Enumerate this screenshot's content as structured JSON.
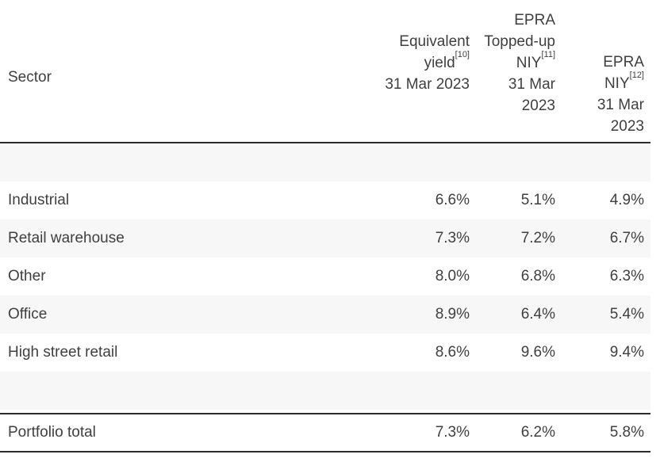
{
  "table": {
    "header": {
      "sector_label": "Sector",
      "columns": [
        {
          "lines": [
            {
              "text": "Equivalent"
            },
            {
              "text": "yield",
              "sup": "[10]"
            },
            {
              "text": "31 Mar 2023"
            }
          ]
        },
        {
          "lines": [
            {
              "text": "EPRA"
            },
            {
              "text": "Topped-up"
            },
            {
              "text": "NIY",
              "sup": "[11]"
            },
            {
              "text": "31 Mar"
            },
            {
              "text": "2023"
            }
          ]
        },
        {
          "lines": [
            {
              "text": "EPRA"
            },
            {
              "text": "NIY",
              "sup": "[12]"
            },
            {
              "text": "31 Mar"
            },
            {
              "text": "2023"
            }
          ]
        }
      ]
    },
    "rows": [
      {
        "sector": "Industrial",
        "equivalent_yield": "6.6%",
        "epra_topped_up_niy": "5.1%",
        "epra_niy": "4.9%"
      },
      {
        "sector": "Retail warehouse",
        "equivalent_yield": "7.3%",
        "epra_topped_up_niy": "7.2%",
        "epra_niy": "6.7%"
      },
      {
        "sector": "Other",
        "equivalent_yield": "8.0%",
        "epra_topped_up_niy": "6.8%",
        "epra_niy": "6.3%"
      },
      {
        "sector": "Office",
        "equivalent_yield": "8.9%",
        "epra_topped_up_niy": "6.4%",
        "epra_niy": "5.4%"
      },
      {
        "sector": "High street retail",
        "equivalent_yield": "8.6%",
        "epra_topped_up_niy": "9.6%",
        "epra_niy": "9.4%"
      }
    ],
    "total_row": {
      "sector": "Portfolio total",
      "equivalent_yield": "7.3%",
      "epra_topped_up_niy": "6.2%",
      "epra_niy": "5.8%"
    }
  },
  "colors": {
    "text": "#3f3f3f",
    "stripe": "#f7f7f7",
    "rule": "#2b2b2b",
    "background": "#ffffff"
  }
}
